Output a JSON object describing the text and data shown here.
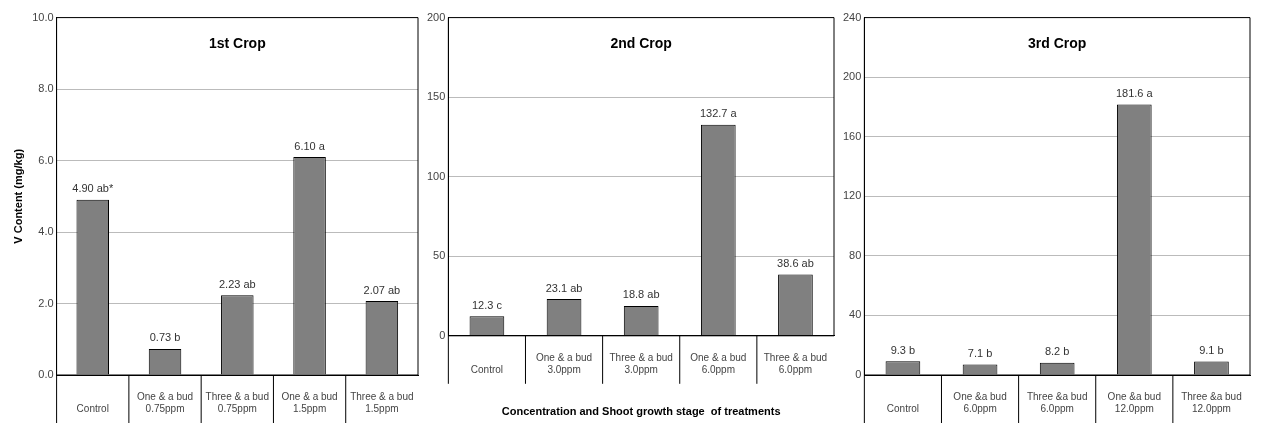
{
  "chart_data": [
    {
      "type": "bar",
      "title": "1st Crop",
      "ylabel": "V Content (mg/kg)",
      "categories": [
        "Control",
        "One & a bud\n0.75ppm",
        "Three & a bud\n0.75ppm",
        "One & a bud\n1.5ppm",
        "Three & a bud\n1.5ppm"
      ],
      "values": [
        4.9,
        0.73,
        2.23,
        6.1,
        2.07
      ],
      "value_labels": [
        "4.90 ab*",
        "0.73 b",
        "2.23 ab",
        "6.10 a",
        "2.07 ab"
      ],
      "color": "#808080",
      "ylim": [
        0,
        10
      ],
      "yticks": [
        {
          "value": 0,
          "label": "0.0"
        },
        {
          "value": 2,
          "label": "2.0"
        },
        {
          "value": 4,
          "label": "4.0"
        },
        {
          "value": 6,
          "label": "6.0"
        },
        {
          "value": 8,
          "label": "8.0"
        },
        {
          "value": 10,
          "label": "10.0"
        }
      ],
      "grid": "y"
    },
    {
      "type": "bar",
      "title": "2nd Crop",
      "xlabel": "Concentration and Shoot growth stage  of treatments",
      "categories": [
        "Control",
        "One & a bud\n3.0ppm",
        "Three & a bud\n3.0ppm",
        "One & a bud\n6.0ppm",
        "Three & a bud\n6.0ppm"
      ],
      "values": [
        12.3,
        23.1,
        18.8,
        132.7,
        38.6
      ],
      "value_labels": [
        "12.3 c",
        "23.1 ab",
        "18.8 ab",
        "132.7 a",
        "38.6 ab"
      ],
      "color": "#808080",
      "ylim": [
        0,
        200
      ],
      "yticks": [
        0,
        50,
        100,
        150,
        200
      ],
      "grid": "y"
    },
    {
      "type": "bar",
      "title": "3rd Crop",
      "categories": [
        "Control",
        "One &a bud\n6.0ppm",
        "Three &a bud\n6.0ppm",
        "One &a bud\n12.0ppm",
        "Three &a bud\n12.0ppm"
      ],
      "values": [
        9.3,
        7.1,
        8.2,
        181.6,
        9.1
      ],
      "value_labels": [
        "9.3 b",
        "7.1 b",
        "8.2 b",
        "181.6 a",
        "9.1 b"
      ],
      "color": "#808080",
      "ylim": [
        0,
        240
      ],
      "yticks": [
        0,
        40,
        80,
        120,
        160,
        200,
        240
      ],
      "grid": "y"
    }
  ]
}
